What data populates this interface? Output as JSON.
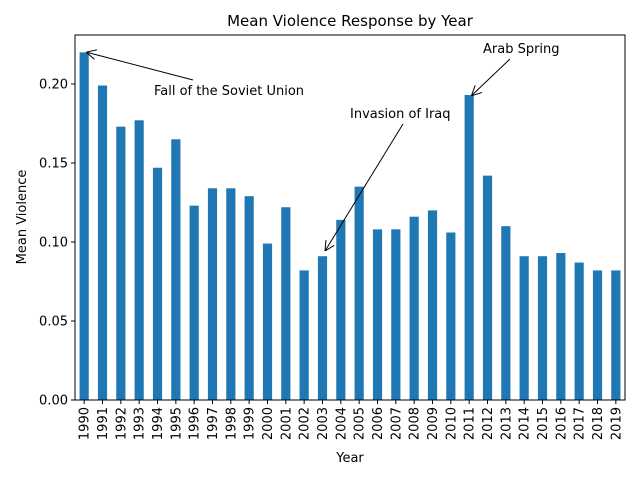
{
  "chart_data": {
    "type": "bar",
    "title": "Mean Violence Response by Year",
    "xlabel": "Year",
    "ylabel": "Mean Violence",
    "categories": [
      "1990",
      "1991",
      "1992",
      "1993",
      "1994",
      "1995",
      "1996",
      "1997",
      "1998",
      "1999",
      "2000",
      "2001",
      "2002",
      "2003",
      "2004",
      "2005",
      "2006",
      "2007",
      "2008",
      "2009",
      "2010",
      "2011",
      "2012",
      "2013",
      "2014",
      "2015",
      "2016",
      "2017",
      "2018",
      "2019"
    ],
    "values": [
      0.22,
      0.199,
      0.173,
      0.177,
      0.147,
      0.165,
      0.123,
      0.134,
      0.134,
      0.129,
      0.099,
      0.122,
      0.082,
      0.091,
      0.114,
      0.135,
      0.108,
      0.108,
      0.116,
      0.12,
      0.106,
      0.193,
      0.142,
      0.11,
      0.091,
      0.091,
      0.093,
      0.087,
      0.082,
      0.082
    ],
    "ylim": [
      0,
      0.231
    ],
    "yticks": [
      0.0,
      0.05,
      0.1,
      0.15,
      0.2
    ],
    "ytick_labels": [
      "0.00",
      "0.05",
      "0.10",
      "0.15",
      "0.20"
    ],
    "bar_color": "#1f77b4",
    "grid": false,
    "legend": "none",
    "annotations": [
      {
        "text": "Fall of the Soviet Union",
        "target_category": "1990",
        "target_value": 0.22
      },
      {
        "text": "Invasion of Iraq",
        "target_category": "2003",
        "target_value": 0.091
      },
      {
        "text": "Arab Spring",
        "target_category": "2011",
        "target_value": 0.193
      }
    ]
  }
}
